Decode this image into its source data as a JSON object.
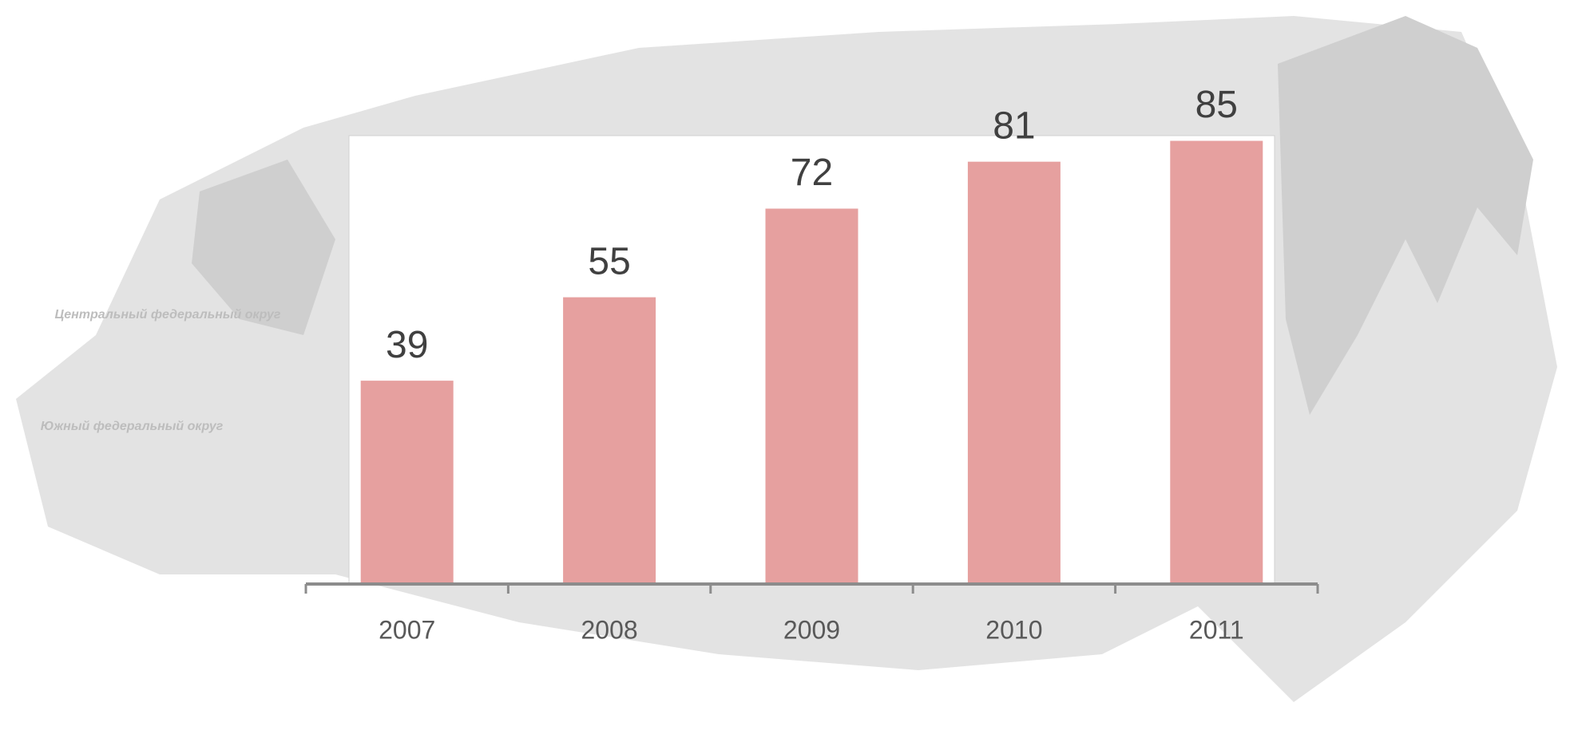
{
  "chart_data": {
    "type": "bar",
    "categories": [
      "2007",
      "2008",
      "2009",
      "2010",
      "2011"
    ],
    "values": [
      39,
      55,
      72,
      81,
      85
    ],
    "color": "#e6a09f",
    "ylim": [
      0,
      86
    ],
    "grid": false
  },
  "map_labels": [
    "Центральный федеральный округ",
    "Южный федеральный округ"
  ]
}
